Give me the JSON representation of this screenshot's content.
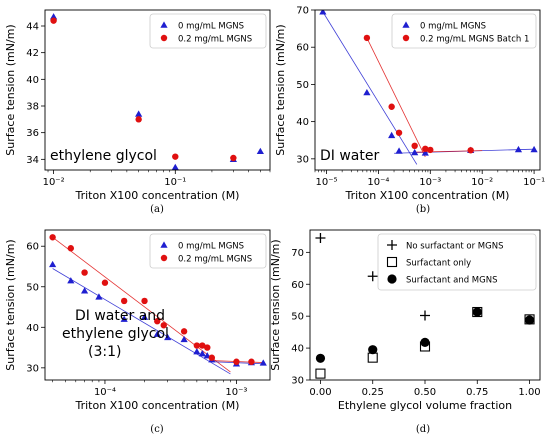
{
  "chart_data": [
    {
      "panel": "a",
      "type": "scatter",
      "caption": "(a)",
      "xlabel": "Triton X100 concentration (M)",
      "ylabel": "Surface tension (mN/m)",
      "xscale": "log",
      "xlim": [
        0.0085,
        0.6
      ],
      "ylim": [
        33.2,
        45.2
      ],
      "xticks": [
        0.01,
        0.1
      ],
      "xticklabels": [
        "10⁻²",
        "10⁻¹"
      ],
      "yticks": [
        34,
        36,
        38,
        40,
        42,
        44
      ],
      "annotation": "ethylene glycol",
      "legend_position": "top-right",
      "series": [
        {
          "name": "0 mg/mL MGNS",
          "marker": "triangle",
          "color": "#1f1fd0",
          "x": [
            0.01,
            0.05,
            0.1,
            0.3,
            0.5
          ],
          "y": [
            44.7,
            37.4,
            33.4,
            34.0,
            34.6
          ]
        },
        {
          "name": "0.2 mg/mL MGNS",
          "marker": "circle",
          "color": "#e01010",
          "x": [
            0.01,
            0.05,
            0.1,
            0.3
          ],
          "y": [
            44.4,
            37.0,
            34.2,
            34.1
          ]
        }
      ],
      "fit_lines": []
    },
    {
      "panel": "b",
      "type": "scatter",
      "caption": "(b)",
      "xlabel": "Triton X100 concentration (M)",
      "ylabel": "Surface tension (mN/m)",
      "xscale": "log",
      "xlim": [
        6e-06,
        0.13
      ],
      "ylim": [
        27,
        70
      ],
      "xticks": [
        1e-05,
        0.0001,
        0.001,
        0.01,
        0.1
      ],
      "xticklabels": [
        "10⁻⁵",
        "10⁻⁴",
        "10⁻³",
        "10⁻²",
        "10⁻¹"
      ],
      "yticks": [
        30,
        40,
        50,
        60,
        70
      ],
      "annotation": "DI water",
      "legend_position": "top-right",
      "series": [
        {
          "name": "0 mg/mL MGNS",
          "marker": "triangle",
          "color": "#1f1fd0",
          "x": [
            8.5e-06,
            6e-05,
            0.00018,
            0.00025,
            0.0005,
            0.0008,
            0.006,
            0.05,
            0.1
          ],
          "y": [
            69.5,
            47.8,
            36.3,
            32.1,
            31.7,
            31.6,
            32.3,
            32.5,
            32.5
          ]
        },
        {
          "name": "0.2 mg/mL MGNS Batch 1",
          "marker": "circle",
          "color": "#e01010",
          "x": [
            6e-05,
            0.00018,
            0.00025,
            0.0005,
            0.0008,
            0.001,
            0.006
          ],
          "y": [
            62.5,
            44.0,
            37.0,
            33.5,
            32.7,
            32.4,
            32.3
          ]
        }
      ],
      "fit_lines": [
        {
          "color": "#1f1fd0",
          "x": [
            8.5e-06,
            0.00055
          ],
          "y": [
            69.5,
            28.5
          ]
        },
        {
          "color": "#1f1fd0",
          "x": [
            0.0002,
            0.1
          ],
          "y": [
            31.5,
            32.6
          ]
        },
        {
          "color": "#e01010",
          "x": [
            6e-05,
            0.0008
          ],
          "y": [
            62.5,
            30.5
          ]
        },
        {
          "color": "#e01010",
          "x": [
            0.0005,
            0.01
          ],
          "y": [
            31.8,
            32.2
          ]
        }
      ]
    },
    {
      "panel": "c",
      "type": "scatter",
      "caption": "(c)",
      "xlabel": "Triton X100 concentration (M)",
      "ylabel": "Surface tension (mN/m)",
      "xscale": "log",
      "xlim": [
        3.5e-05,
        0.0018
      ],
      "ylim": [
        27,
        64
      ],
      "xticks": [
        0.0001,
        0.001
      ],
      "xticklabels": [
        "10⁻⁴",
        "10⁻³"
      ],
      "yticks": [
        30,
        40,
        50,
        60
      ],
      "annotation": [
        "DI water and",
        "ethylene glycol",
        "(3:1)"
      ],
      "legend_position": "top-right",
      "series": [
        {
          "name": "0 mg/mL MGNS",
          "marker": "triangle",
          "color": "#1f1fd0",
          "x": [
            4e-05,
            5.5e-05,
            7e-05,
            9e-05,
            0.00014,
            0.0002,
            0.00025,
            0.0003,
            0.0004,
            0.0005,
            0.00055,
            0.0006,
            0.00065,
            0.001,
            0.0013,
            0.0016
          ],
          "y": [
            55.5,
            51.5,
            49.0,
            47.5,
            42.0,
            42.5,
            38.3,
            37.5,
            37.0,
            34.0,
            33.5,
            33.0,
            32.0,
            31.0,
            31.3,
            31.2
          ]
        },
        {
          "name": "0.2 mg/mL MGNS",
          "marker": "circle",
          "color": "#e01010",
          "x": [
            4e-05,
            5.5e-05,
            7e-05,
            0.0001,
            0.00014,
            0.0002,
            0.00025,
            0.00028,
            0.0004,
            0.0005,
            0.00055,
            0.0006,
            0.00065,
            0.001,
            0.0013
          ],
          "y": [
            62.2,
            59.5,
            53.5,
            51.0,
            46.5,
            46.5,
            41.5,
            40.5,
            39.0,
            35.5,
            35.5,
            35.0,
            32.5,
            31.5,
            31.5
          ]
        }
      ],
      "fit_lines": [
        {
          "color": "#1f1fd0",
          "x": [
            4e-05,
            0.0009
          ],
          "y": [
            54.5,
            28.5
          ]
        },
        {
          "color": "#e01010",
          "x": [
            4e-05,
            0.0009
          ],
          "y": [
            62.2,
            29.0
          ]
        },
        {
          "color": "#1f1fd0",
          "x": [
            0.00065,
            0.0016
          ],
          "y": [
            31.5,
            31.0
          ]
        },
        {
          "color": "#e01010",
          "x": [
            0.00065,
            0.0016
          ],
          "y": [
            31.8,
            31.3
          ]
        }
      ]
    },
    {
      "panel": "d",
      "type": "scatter",
      "caption": "(d)",
      "xlabel": "Ethylene glycol volume fraction",
      "ylabel": "Surface tension (mN/m)",
      "xscale": "linear",
      "xlim": [
        -0.05,
        1.05
      ],
      "ylim": [
        30,
        77
      ],
      "xticks": [
        0.0,
        0.25,
        0.5,
        0.75,
        1.0
      ],
      "xticklabels": [
        "0.00",
        "0.25",
        "0.50",
        "0.75",
        "1.00"
      ],
      "yticks": [
        30,
        40,
        50,
        60,
        70
      ],
      "legend_position": "top-right",
      "series": [
        {
          "name": "No surfactant or MGNS",
          "marker": "plus",
          "color": "#000000",
          "x": [
            0.0,
            0.25,
            0.5
          ],
          "y": [
            74.5,
            62.5,
            50.2
          ]
        },
        {
          "name": "Surfactant only",
          "marker": "square-open",
          "color": "#000000",
          "x": [
            0.0,
            0.25,
            0.5,
            0.75,
            1.0
          ],
          "y": [
            32.0,
            37.0,
            40.5,
            51.3,
            49.0
          ]
        },
        {
          "name": "Surfactant and MGNS",
          "marker": "circle",
          "color": "#000000",
          "x": [
            0.0,
            0.25,
            0.5,
            0.75,
            1.0
          ],
          "y": [
            36.8,
            39.5,
            41.8,
            51.3,
            48.8
          ]
        }
      ],
      "fit_lines": []
    }
  ]
}
